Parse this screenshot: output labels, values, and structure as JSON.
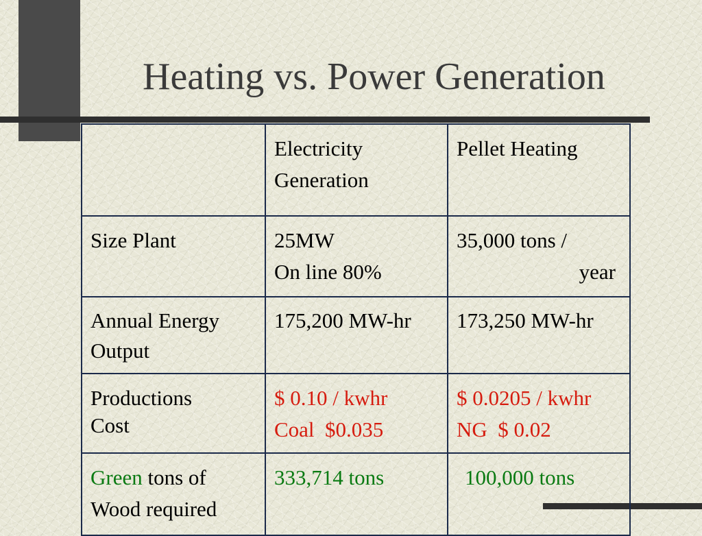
{
  "slide": {
    "title": "Heating vs. Power Generation"
  },
  "colors": {
    "red_text": "#d61c0f",
    "green_text": "#0a7a12",
    "border": "#1b2a4a"
  },
  "table": {
    "header": {
      "corner": "",
      "electricity_line1": "Electricity",
      "electricity_line2": "Generation",
      "pellet": "Pellet Heating"
    },
    "size_plant": {
      "label": "Size Plant",
      "electricity_line1": "25MW",
      "electricity_line2": "On line 80%",
      "pellet_line1": "35,000 tons /",
      "pellet_line2": "year"
    },
    "annual_energy": {
      "label_line1": "Annual Energy",
      "label_line2": "Output",
      "electricity": "175,200 MW-hr",
      "pellet": "173,250 MW-hr"
    },
    "production_cost": {
      "label_line1": "Productions",
      "label_line2": "Cost",
      "electricity_line1": "$ 0.10 / kwhr",
      "electricity_line2": "Coal  $0.035",
      "pellet_line1": "$ 0.0205 / kwhr",
      "pellet_line2": "NG  $ 0.02"
    },
    "green_wood": {
      "label_green": "Green",
      "label_rest": " tons of",
      "label_line2": "Wood required",
      "electricity": "333,714 tons",
      "pellet": "100,000 tons"
    }
  }
}
